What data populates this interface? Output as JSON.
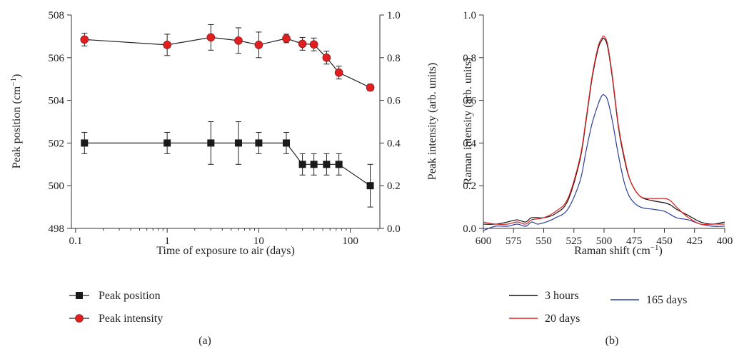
{
  "panel_labels": {
    "a": "(a)",
    "b": "(b)"
  },
  "colors": {
    "peak_position": "#1a1a1a",
    "peak_intensity": "#e02020",
    "line_3h": "#111111",
    "line_20d": "#e02020",
    "line_165d": "#2c3f9a",
    "axis": "#333333"
  },
  "legend_a": [
    "Peak position",
    "Peak intensity"
  ],
  "legend_b": [
    "3 hours",
    "20 days",
    "165 days"
  ],
  "chart_data": [
    {
      "type": "scatter",
      "panel": "(a)",
      "title": "",
      "xlabel": "Time of exposure to air (days)",
      "ylabel_left": "Peak position (cm−1)",
      "ylabel_right": "Peak intensity (arb. units)",
      "xscale": "log",
      "xlim": [
        0.09,
        210
      ],
      "ylim_left": [
        498,
        508
      ],
      "ylim_right": [
        0.0,
        1.0
      ],
      "xticks": [
        0.1,
        1,
        10,
        100
      ],
      "xtick_labels": [
        "0.1",
        "1",
        "10",
        "100"
      ],
      "yticks_left": [
        498,
        500,
        502,
        504,
        506,
        508
      ],
      "yticks_right": [
        0.0,
        0.2,
        0.4,
        0.6,
        0.8,
        1.0
      ],
      "ytick_labels_right": [
        "0.0",
        "0.2",
        "0.4",
        "0.6",
        "0.8",
        "1.0"
      ],
      "legend_position": "below",
      "series": [
        {
          "name": "Peak position",
          "axis": "left",
          "marker": "square",
          "x": [
            0.125,
            1,
            3,
            6,
            10,
            20,
            30,
            40,
            55,
            75,
            165
          ],
          "y": [
            502,
            502,
            502,
            502,
            502,
            502,
            501,
            501,
            501,
            501,
            500
          ],
          "err": [
            0.5,
            0.5,
            1.0,
            1.0,
            0.5,
            0.5,
            0.5,
            0.5,
            0.5,
            0.5,
            1.0
          ]
        },
        {
          "name": "Peak intensity",
          "axis": "right",
          "marker": "circle",
          "x": [
            0.125,
            1,
            3,
            6,
            10,
            20,
            30,
            40,
            55,
            75,
            165
          ],
          "y": [
            0.885,
            0.86,
            0.895,
            0.88,
            0.86,
            0.89,
            0.865,
            0.862,
            0.8,
            0.73,
            0.66
          ],
          "err": [
            0.03,
            0.05,
            0.06,
            0.06,
            0.06,
            0.02,
            0.03,
            0.03,
            0.03,
            0.03,
            0.015
          ]
        }
      ]
    },
    {
      "type": "line",
      "panel": "(b)",
      "title": "",
      "xlabel": "Raman shift (cm−1)",
      "ylabel": "Raman intensity (arb. units)",
      "xlim": [
        600,
        400
      ],
      "ylim": [
        0.0,
        1.0
      ],
      "xticks": [
        600,
        575,
        550,
        525,
        500,
        475,
        450,
        425,
        400
      ],
      "yticks": [
        0.0,
        0.2,
        0.4,
        0.6,
        0.8,
        1.0
      ],
      "ytick_labels": [
        "0.0",
        "0.2",
        "0.4",
        "0.6",
        "0.8",
        "1.0"
      ],
      "legend_position": "below",
      "series": [
        {
          "name": "3 hours",
          "x": [
            600,
            590,
            580,
            572,
            565,
            560,
            550,
            540,
            530,
            520,
            515,
            510,
            505,
            502,
            500,
            497,
            493,
            488,
            483,
            478,
            470,
            460,
            450,
            445,
            440,
            430,
            420,
            410,
            400
          ],
          "y": [
            0.02,
            0.02,
            0.03,
            0.04,
            0.03,
            0.05,
            0.05,
            0.07,
            0.13,
            0.32,
            0.5,
            0.7,
            0.84,
            0.88,
            0.89,
            0.85,
            0.7,
            0.47,
            0.32,
            0.22,
            0.15,
            0.13,
            0.12,
            0.11,
            0.09,
            0.06,
            0.03,
            0.02,
            0.03
          ]
        },
        {
          "name": "20 days",
          "x": [
            600,
            590,
            580,
            572,
            565,
            560,
            550,
            540,
            530,
            520,
            515,
            510,
            505,
            502,
            500,
            497,
            493,
            488,
            483,
            478,
            470,
            460,
            450,
            445,
            440,
            430,
            420,
            410,
            400
          ],
          "y": [
            0.03,
            0.02,
            0.02,
            0.03,
            0.02,
            0.04,
            0.05,
            0.08,
            0.14,
            0.33,
            0.51,
            0.71,
            0.85,
            0.89,
            0.9,
            0.86,
            0.71,
            0.48,
            0.33,
            0.22,
            0.15,
            0.14,
            0.14,
            0.13,
            0.1,
            0.05,
            0.02,
            0.02,
            0.02
          ]
        },
        {
          "name": "165 days",
          "x": [
            600,
            590,
            580,
            572,
            565,
            560,
            555,
            548,
            540,
            530,
            520,
            515,
            510,
            505,
            502,
            500,
            497,
            493,
            488,
            483,
            478,
            470,
            460,
            450,
            440,
            430,
            420,
            410,
            400
          ],
          "y": [
            -0.01,
            0.01,
            0.01,
            0.02,
            0.01,
            0.03,
            0.02,
            0.03,
            0.05,
            0.09,
            0.22,
            0.36,
            0.49,
            0.58,
            0.62,
            0.625,
            0.6,
            0.5,
            0.34,
            0.21,
            0.14,
            0.1,
            0.09,
            0.08,
            0.05,
            0.04,
            0.02,
            0.01,
            0.01
          ]
        }
      ]
    }
  ]
}
